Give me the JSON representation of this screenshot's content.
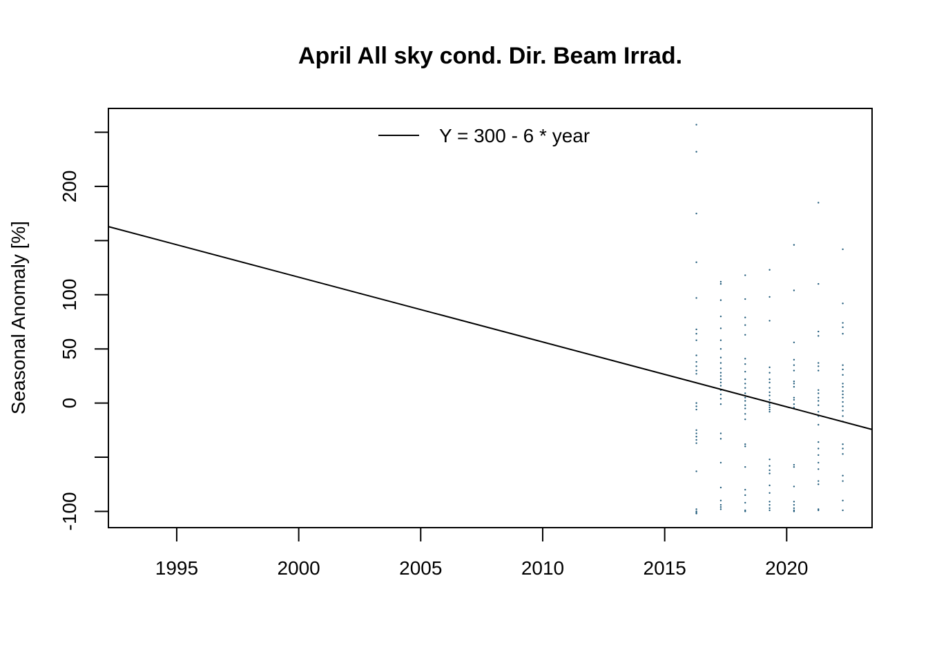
{
  "chart_data": {
    "type": "scatter",
    "title": "April All sky cond. Dir. Beam Irrad.",
    "xlabel": "",
    "ylabel": "Seasonal Anomaly [%]",
    "xlim": [
      1992.2,
      2023.5
    ],
    "ylim": [
      -115,
      272
    ],
    "x_ticks": [
      1995,
      2000,
      2005,
      2010,
      2015,
      2020
    ],
    "x_tick_labels": [
      "1995",
      "2000",
      "2005",
      "2010",
      "2015",
      "2020"
    ],
    "y_ticks": [
      -100,
      -50,
      0,
      50,
      100,
      150,
      200,
      250
    ],
    "y_tick_labels": [
      "-100",
      "",
      "0",
      "50",
      "100",
      "",
      "200",
      ""
    ],
    "grid": false,
    "legend": {
      "position": "top",
      "entries": [
        {
          "label": "Y = 300 - 6 * year",
          "style": "line",
          "color": "#000000"
        }
      ]
    },
    "trend_line": {
      "x": [
        1992.2,
        2023.5
      ],
      "y": [
        162.9,
        -24.4
      ],
      "color": "#000000"
    },
    "point_color": "#1f5a7a",
    "series": [
      {
        "x": [
          2016.3,
          2016.3,
          2016.3,
          2016.3,
          2016.3,
          2016.3,
          2016.3,
          2016.3,
          2016.3,
          2016.3,
          2016.3,
          2016.3,
          2016.3,
          2016.3,
          2016.3,
          2016.3,
          2016.3,
          2016.3,
          2016.3,
          2016.3,
          2016.3,
          2016.3,
          2016.3,
          2016.3,
          2016.3,
          2016.3,
          2017.3,
          2017.3,
          2017.3,
          2017.3,
          2017.3,
          2017.3,
          2017.3,
          2017.3,
          2017.3,
          2017.3,
          2017.3,
          2017.3,
          2017.3,
          2017.3,
          2017.3,
          2017.3,
          2017.3,
          2017.3,
          2017.3,
          2017.3,
          2017.3,
          2017.3,
          2017.3,
          2017.3,
          2017.3,
          2017.3,
          2017.3,
          2018.3,
          2018.3,
          2018.3,
          2018.3,
          2018.3,
          2018.3,
          2018.3,
          2018.3,
          2018.3,
          2018.3,
          2018.3,
          2018.3,
          2018.3,
          2018.3,
          2018.3,
          2018.3,
          2018.3,
          2018.3,
          2018.3,
          2018.3,
          2018.3,
          2018.3,
          2018.3,
          2018.3,
          2018.3,
          2018.3,
          2019.3,
          2019.3,
          2019.3,
          2019.3,
          2019.3,
          2019.3,
          2019.3,
          2019.3,
          2019.3,
          2019.3,
          2019.3,
          2019.3,
          2019.3,
          2019.3,
          2019.3,
          2019.3,
          2019.3,
          2019.3,
          2019.3,
          2019.3,
          2019.3,
          2019.3,
          2019.3,
          2019.3,
          2019.3,
          2019.3,
          2020.3,
          2020.3,
          2020.3,
          2020.3,
          2020.3,
          2020.3,
          2020.3,
          2020.3,
          2020.3,
          2020.3,
          2020.3,
          2020.3,
          2020.3,
          2020.3,
          2020.3,
          2020.3,
          2020.3,
          2020.3,
          2020.3,
          2020.3,
          2020.3,
          2021.3,
          2021.3,
          2021.3,
          2021.3,
          2021.3,
          2021.3,
          2021.3,
          2021.3,
          2021.3,
          2021.3,
          2021.3,
          2021.3,
          2021.3,
          2021.3,
          2021.3,
          2021.3,
          2021.3,
          2021.3,
          2021.3,
          2021.3,
          2021.3,
          2021.3,
          2021.3,
          2021.3,
          2022.3,
          2022.3,
          2022.3,
          2022.3,
          2022.3,
          2022.3,
          2022.3,
          2022.3,
          2022.3,
          2022.3,
          2022.3,
          2022.3,
          2022.3,
          2022.3,
          2022.3,
          2022.3,
          2022.3,
          2022.3,
          2022.3,
          2022.3,
          2022.3,
          2022.3,
          2022.3,
          2022.3,
          2022.3
        ],
        "y": [
          257,
          232,
          175,
          130,
          97,
          68,
          64,
          58,
          44,
          38,
          34,
          30,
          27,
          0,
          -3,
          -6,
          -25,
          -28,
          -31,
          -34,
          -37,
          -63,
          -98,
          -100,
          -101,
          -102,
          112,
          110,
          95,
          80,
          69,
          58,
          50,
          42,
          37,
          32,
          28,
          25,
          22,
          19,
          16,
          12,
          8,
          4,
          -1,
          -28,
          -33,
          -55,
          -78,
          -90,
          -94,
          -96,
          -98,
          118,
          96,
          79,
          72,
          63,
          41,
          36,
          29,
          22,
          18,
          14,
          9,
          5,
          2,
          -2,
          -5,
          -10,
          -15,
          -38,
          -40,
          -59,
          -80,
          -85,
          -92,
          -99,
          -100,
          123,
          98,
          76,
          33,
          28,
          22,
          19,
          14,
          10,
          7,
          3,
          0,
          -2,
          -4,
          -6,
          -8,
          -52,
          -58,
          -62,
          -65,
          -76,
          -83,
          -91,
          -94,
          -97,
          -99,
          146,
          104,
          56,
          40,
          35,
          30,
          20,
          18,
          15,
          5,
          3,
          -1,
          -4,
          -57,
          -59,
          -77,
          -91,
          -94,
          -97,
          -99,
          -100,
          185,
          110,
          66,
          62,
          37,
          34,
          30,
          12,
          9,
          5,
          2,
          -2,
          -8,
          -12,
          -20,
          -36,
          -42,
          -48,
          -55,
          -61,
          -72,
          -75,
          -98,
          -99,
          142,
          92,
          74,
          70,
          64,
          35,
          31,
          26,
          18,
          15,
          11,
          8,
          5,
          1,
          -3,
          -7,
          -12,
          -17,
          -38,
          -42,
          -47,
          -67,
          -72,
          -90,
          -99
        ]
      }
    ]
  }
}
